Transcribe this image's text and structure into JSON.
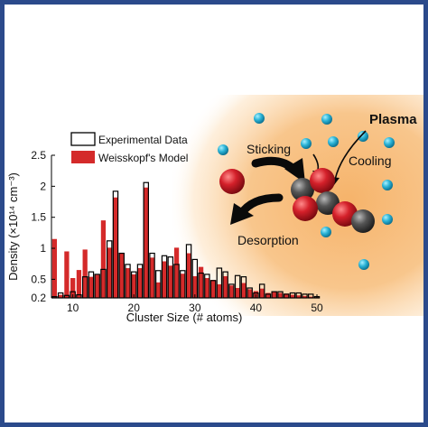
{
  "chart_data": {
    "type": "bar",
    "xlabel": "Cluster Size (# atoms)",
    "ylabel": "Density (×10¹⁴ cm⁻³)",
    "xlim": [
      6.5,
      50
    ],
    "ylim": [
      0.2,
      2.5
    ],
    "xticks": [
      "10",
      "20",
      "30",
      "40",
      "50"
    ],
    "yticks": [
      "0.2",
      "0.5",
      "1",
      "1.5",
      "2",
      "2.5"
    ],
    "legend_position": "top-left",
    "grid": false,
    "x": [
      7,
      8,
      9,
      10,
      11,
      12,
      13,
      14,
      15,
      16,
      17,
      18,
      19,
      20,
      21,
      22,
      23,
      24,
      25,
      26,
      27,
      28,
      29,
      30,
      31,
      32,
      33,
      34,
      35,
      36,
      37,
      38,
      39,
      40,
      41,
      42,
      43,
      44,
      45,
      46,
      47,
      48,
      49,
      50
    ],
    "series": [
      {
        "name": "Experimental Data",
        "style": "outline",
        "color": "#000000",
        "values": [
          0.22,
          0.28,
          0.24,
          0.3,
          0.25,
          0.54,
          0.62,
          0.58,
          0.66,
          1.12,
          1.92,
          0.92,
          0.74,
          0.62,
          0.74,
          2.06,
          0.92,
          0.64,
          0.88,
          0.86,
          0.74,
          0.64,
          1.06,
          0.82,
          0.6,
          0.58,
          0.48,
          0.68,
          0.62,
          0.42,
          0.56,
          0.54,
          0.36,
          0.28,
          0.42,
          0.26,
          0.3,
          0.3,
          0.26,
          0.28,
          0.28,
          0.26,
          0.26,
          0.22
        ]
      },
      {
        "name": "Weisskopf's Model",
        "style": "filled",
        "color": "#d42a2a",
        "values": [
          1.15,
          0.25,
          0.95,
          0.52,
          0.65,
          0.98,
          0.54,
          0.57,
          1.45,
          1.01,
          1.82,
          0.92,
          0.68,
          0.58,
          0.68,
          1.98,
          0.85,
          0.45,
          0.79,
          0.72,
          1.01,
          0.59,
          0.92,
          0.55,
          0.7,
          0.52,
          0.49,
          0.42,
          0.55,
          0.4,
          0.36,
          0.44,
          0.34,
          0.31,
          0.35,
          0.28,
          0.3,
          0.28,
          0.27,
          0.25,
          0.24,
          0.23,
          0.22,
          0.21
        ]
      }
    ]
  },
  "inset": {
    "plasma_label": "Plasma",
    "sticking_label": "Sticking",
    "cooling_label": "Cooling",
    "desorption_label": "Desorption",
    "colors": {
      "background": "#f6b36a",
      "ion": "#2bb3d6",
      "oxygen": "#d4202a",
      "carbon": "#555555"
    }
  }
}
